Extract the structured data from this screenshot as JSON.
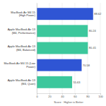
{
  "chart_data": {
    "type": "bar",
    "orientation": "horizontal",
    "x_label": "Score · Higher is Better",
    "categories": [
      "MacBook Air M4 15 (High Power)",
      "Apple MacBook Air 13 (M4, Performance)",
      "Apple MacBook Air 13 (M4, Balanced)",
      "MacBook Air M4 15 (Low Power)",
      "Apple MacBook Air 13 (M4, Quiet)"
    ],
    "values": [
      88.62,
      80.24,
      80.41,
      70.58,
      55.63
    ],
    "colors": [
      "#2f55d4",
      "#3cc79c",
      "#3cc79c",
      "#2f55d4",
      "#3cc79c"
    ],
    "xlim": [
      0,
      100
    ],
    "xticks": [
      0,
      20,
      40,
      60,
      80,
      100
    ],
    "grid": true,
    "data_labels": true
  }
}
